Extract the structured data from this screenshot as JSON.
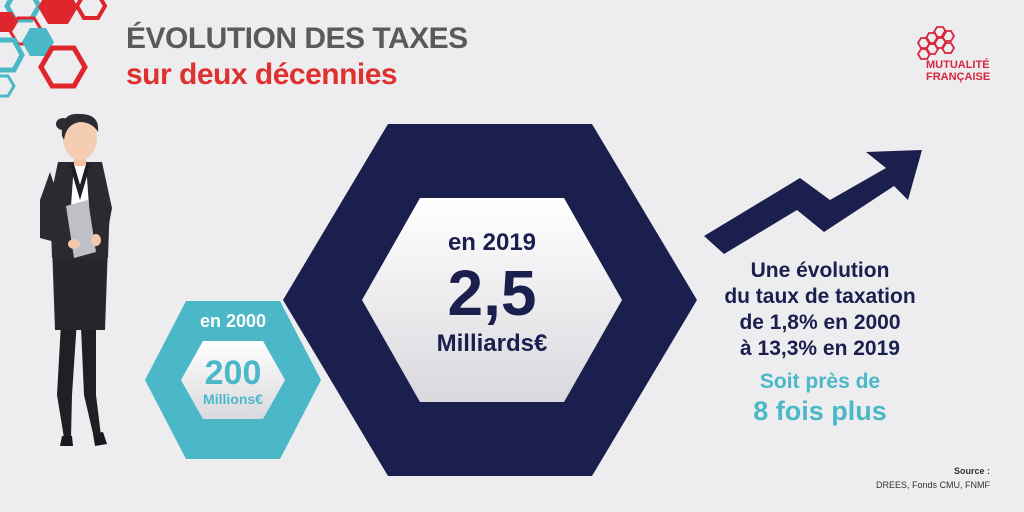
{
  "title": {
    "line1": "ÉVOLUTION DES TAXES",
    "line2": "sur deux décennies"
  },
  "logo": {
    "line1": "MUTUALITÉ",
    "line2": "FRANÇAISE"
  },
  "year_2000": {
    "label": "en 2000",
    "value": "200",
    "unit": "Millions€"
  },
  "year_2019": {
    "label": "en 2019",
    "value": "2,5",
    "unit": "Milliards€"
  },
  "evolution": {
    "line1": "Une évolution",
    "line2": "du taux de taxation",
    "line3": "de 1,8% en 2000",
    "line4": "à 13,3% en 2019"
  },
  "highlight": {
    "line1": "Soit près de",
    "line2": "8 fois plus"
  },
  "source": {
    "title": "Source :",
    "value": "DREES, Fonds CMU, FNMF"
  },
  "colors": {
    "navy": "#1a1f4e",
    "teal": "#4bb8c8",
    "red": "#e03131",
    "grey_text": "#5a5a5c",
    "background": "#ededef"
  },
  "icons": {
    "decor": "hexagon-cluster",
    "trend": "up-arrow-zigzag",
    "person": "businesswoman-illustration",
    "logo": "hexagon-logo"
  }
}
